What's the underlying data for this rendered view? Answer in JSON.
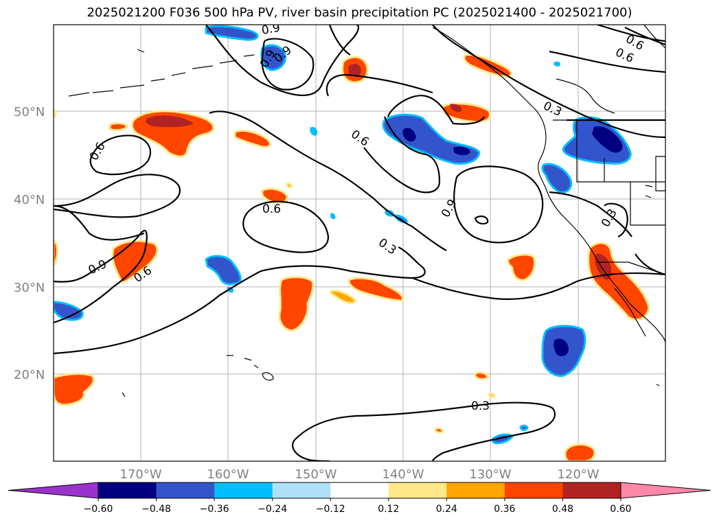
{
  "title": "2025021200 F036 500 hPa PV, river basin precipitation PC (2025021400 - 2025021700)",
  "lat_labels": [
    "50°N",
    "40°N",
    "30°N",
    "20°N"
  ],
  "lon_labels": [
    "170°W",
    "160°W",
    "150°W",
    "140°W",
    "130°W",
    "120°W"
  ],
  "contour_labels": [
    "0.9",
    "0.9",
    "0.6",
    "0.6",
    "0.3",
    "0.6",
    "0.6",
    "0.9",
    "0.6",
    "0.3",
    "0.9",
    "0.6",
    "0.3",
    "0.3",
    "0.9"
  ],
  "colorbar": {
    "ticks": [
      "−0.60",
      "−0.48",
      "−0.36",
      "−0.24",
      "−0.12",
      "0.12",
      "0.24",
      "0.36",
      "0.48",
      "0.60"
    ],
    "colors": [
      "#9933cc",
      "#000080",
      "#3355cc",
      "#00bfff",
      "#b0e0f8",
      "#ffffff",
      "#ffe88a",
      "#ffa500",
      "#ff4500",
      "#b22222",
      "#ff88aa"
    ]
  },
  "colors": {
    "neg_strong": "#000080",
    "neg_mid": "#3355cc",
    "neg_light": "#00bfff",
    "pos_light": "#ffe88a",
    "pos_mid": "#ffa500",
    "pos_strong": "#ff4500",
    "pos_max": "#b22222",
    "grid": "#b0b0b0"
  }
}
